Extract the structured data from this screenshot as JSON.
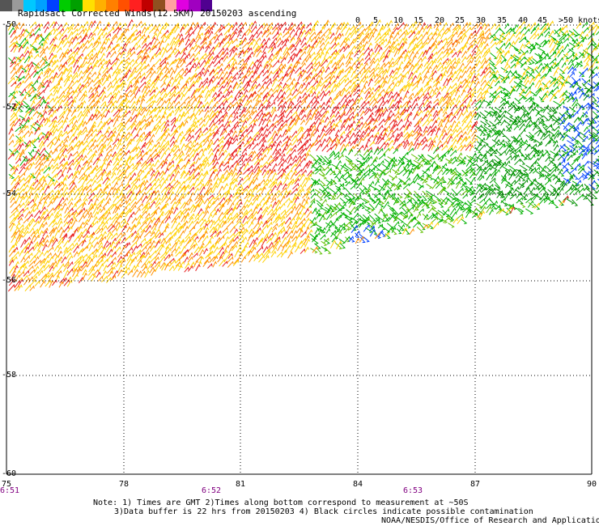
{
  "title": "Rapidsact Corrected Winds(12.5KM) 20150203 ascending",
  "legend": {
    "colors": [
      "#555555",
      "#9a9a9a",
      "#00c8ff",
      "#00a0ff",
      "#0040ff",
      "#00cc00",
      "#00a000",
      "#ffe000",
      "#ffb000",
      "#ff8000",
      "#ff5000",
      "#ff2020",
      "#c00000",
      "#905020",
      "#ffa0a0",
      "#e000e0",
      "#a000c0",
      "#500090"
    ],
    "labels": [
      {
        "text": "0",
        "x": 439
      },
      {
        "text": "5",
        "x": 461
      },
      {
        "text": "10",
        "x": 486
      },
      {
        "text": "15",
        "x": 511
      },
      {
        "text": "20",
        "x": 537
      },
      {
        "text": "25",
        "x": 562
      },
      {
        "text": "30",
        "x": 588
      },
      {
        "text": "35",
        "x": 614
      },
      {
        "text": "40",
        "x": 640
      },
      {
        "text": "45",
        "x": 664
      },
      {
        "text": ">50 knots",
        "x": 690
      }
    ]
  },
  "axes": {
    "lat_labels": [
      "-50",
      "-52",
      "-54",
      "-56",
      "-58",
      "-60"
    ],
    "lon_labels": [
      "75",
      "78",
      "81",
      "84",
      "87",
      "90"
    ],
    "times": [
      "6:51",
      "6:52",
      "6:53"
    ]
  },
  "notes": {
    "line1": "Note: 1) Times are GMT 2)Times along bottom correspond to measurement at ~50S",
    "line2": "3)Data buffer is 22 hrs from 20150203 4) Black circles indicate possible contamination",
    "line3": "NOAA/NESDIS/Office of Research and Applications"
  }
}
